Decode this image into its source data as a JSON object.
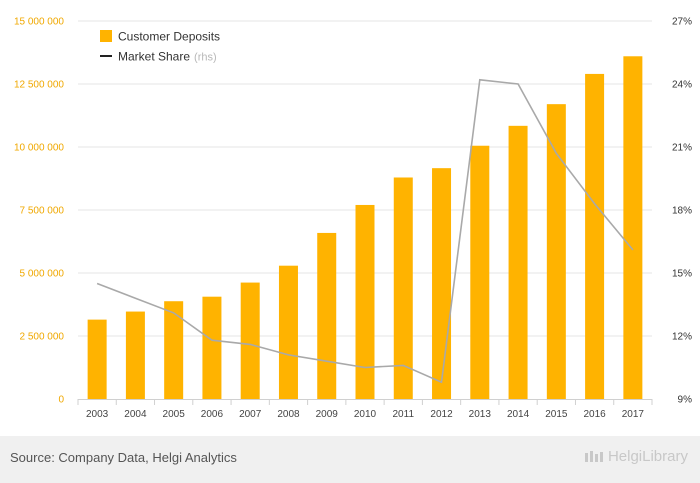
{
  "chart_data": {
    "type": "bar",
    "categories": [
      "2003",
      "2004",
      "2005",
      "2006",
      "2007",
      "2008",
      "2009",
      "2010",
      "2011",
      "2012",
      "2013",
      "2014",
      "2015",
      "2016",
      "2017"
    ],
    "series": [
      {
        "name": "Customer Deposits",
        "type": "bar",
        "axis": "left",
        "values": [
          3150000,
          3470000,
          3880000,
          4060000,
          4620000,
          5290000,
          6590000,
          7700000,
          8790000,
          9160000,
          10050000,
          10840000,
          11700000,
          12900000,
          13600000
        ]
      },
      {
        "name": "Market Share",
        "note": "(rhs)",
        "type": "line",
        "axis": "right",
        "values": [
          14.5,
          13.8,
          13.1,
          11.8,
          11.6,
          11.1,
          10.8,
          10.5,
          10.6,
          9.8,
          24.2,
          24.0,
          20.7,
          18.3,
          16.1
        ]
      }
    ],
    "y_left": {
      "ylim": [
        0,
        15000000
      ],
      "ticks": [
        "0",
        "2 500 000",
        "5 000 000",
        "7 500 000",
        "10 000 000",
        "12 500 000",
        "15 000 000"
      ]
    },
    "y_right": {
      "ylim": [
        9,
        27
      ],
      "ticks": [
        "9%",
        "12%",
        "15%",
        "18%",
        "21%",
        "24%",
        "27%"
      ]
    },
    "legend_position": "top-left",
    "colors": {
      "bar": "#ffb300",
      "line": "#a9a9a9",
      "left_ticks": "#f0a800",
      "grid": "#e6e6e6"
    }
  },
  "footer": {
    "source": "Source: Company Data, Helgi Analytics",
    "brand": "HelgiLibrary"
  }
}
